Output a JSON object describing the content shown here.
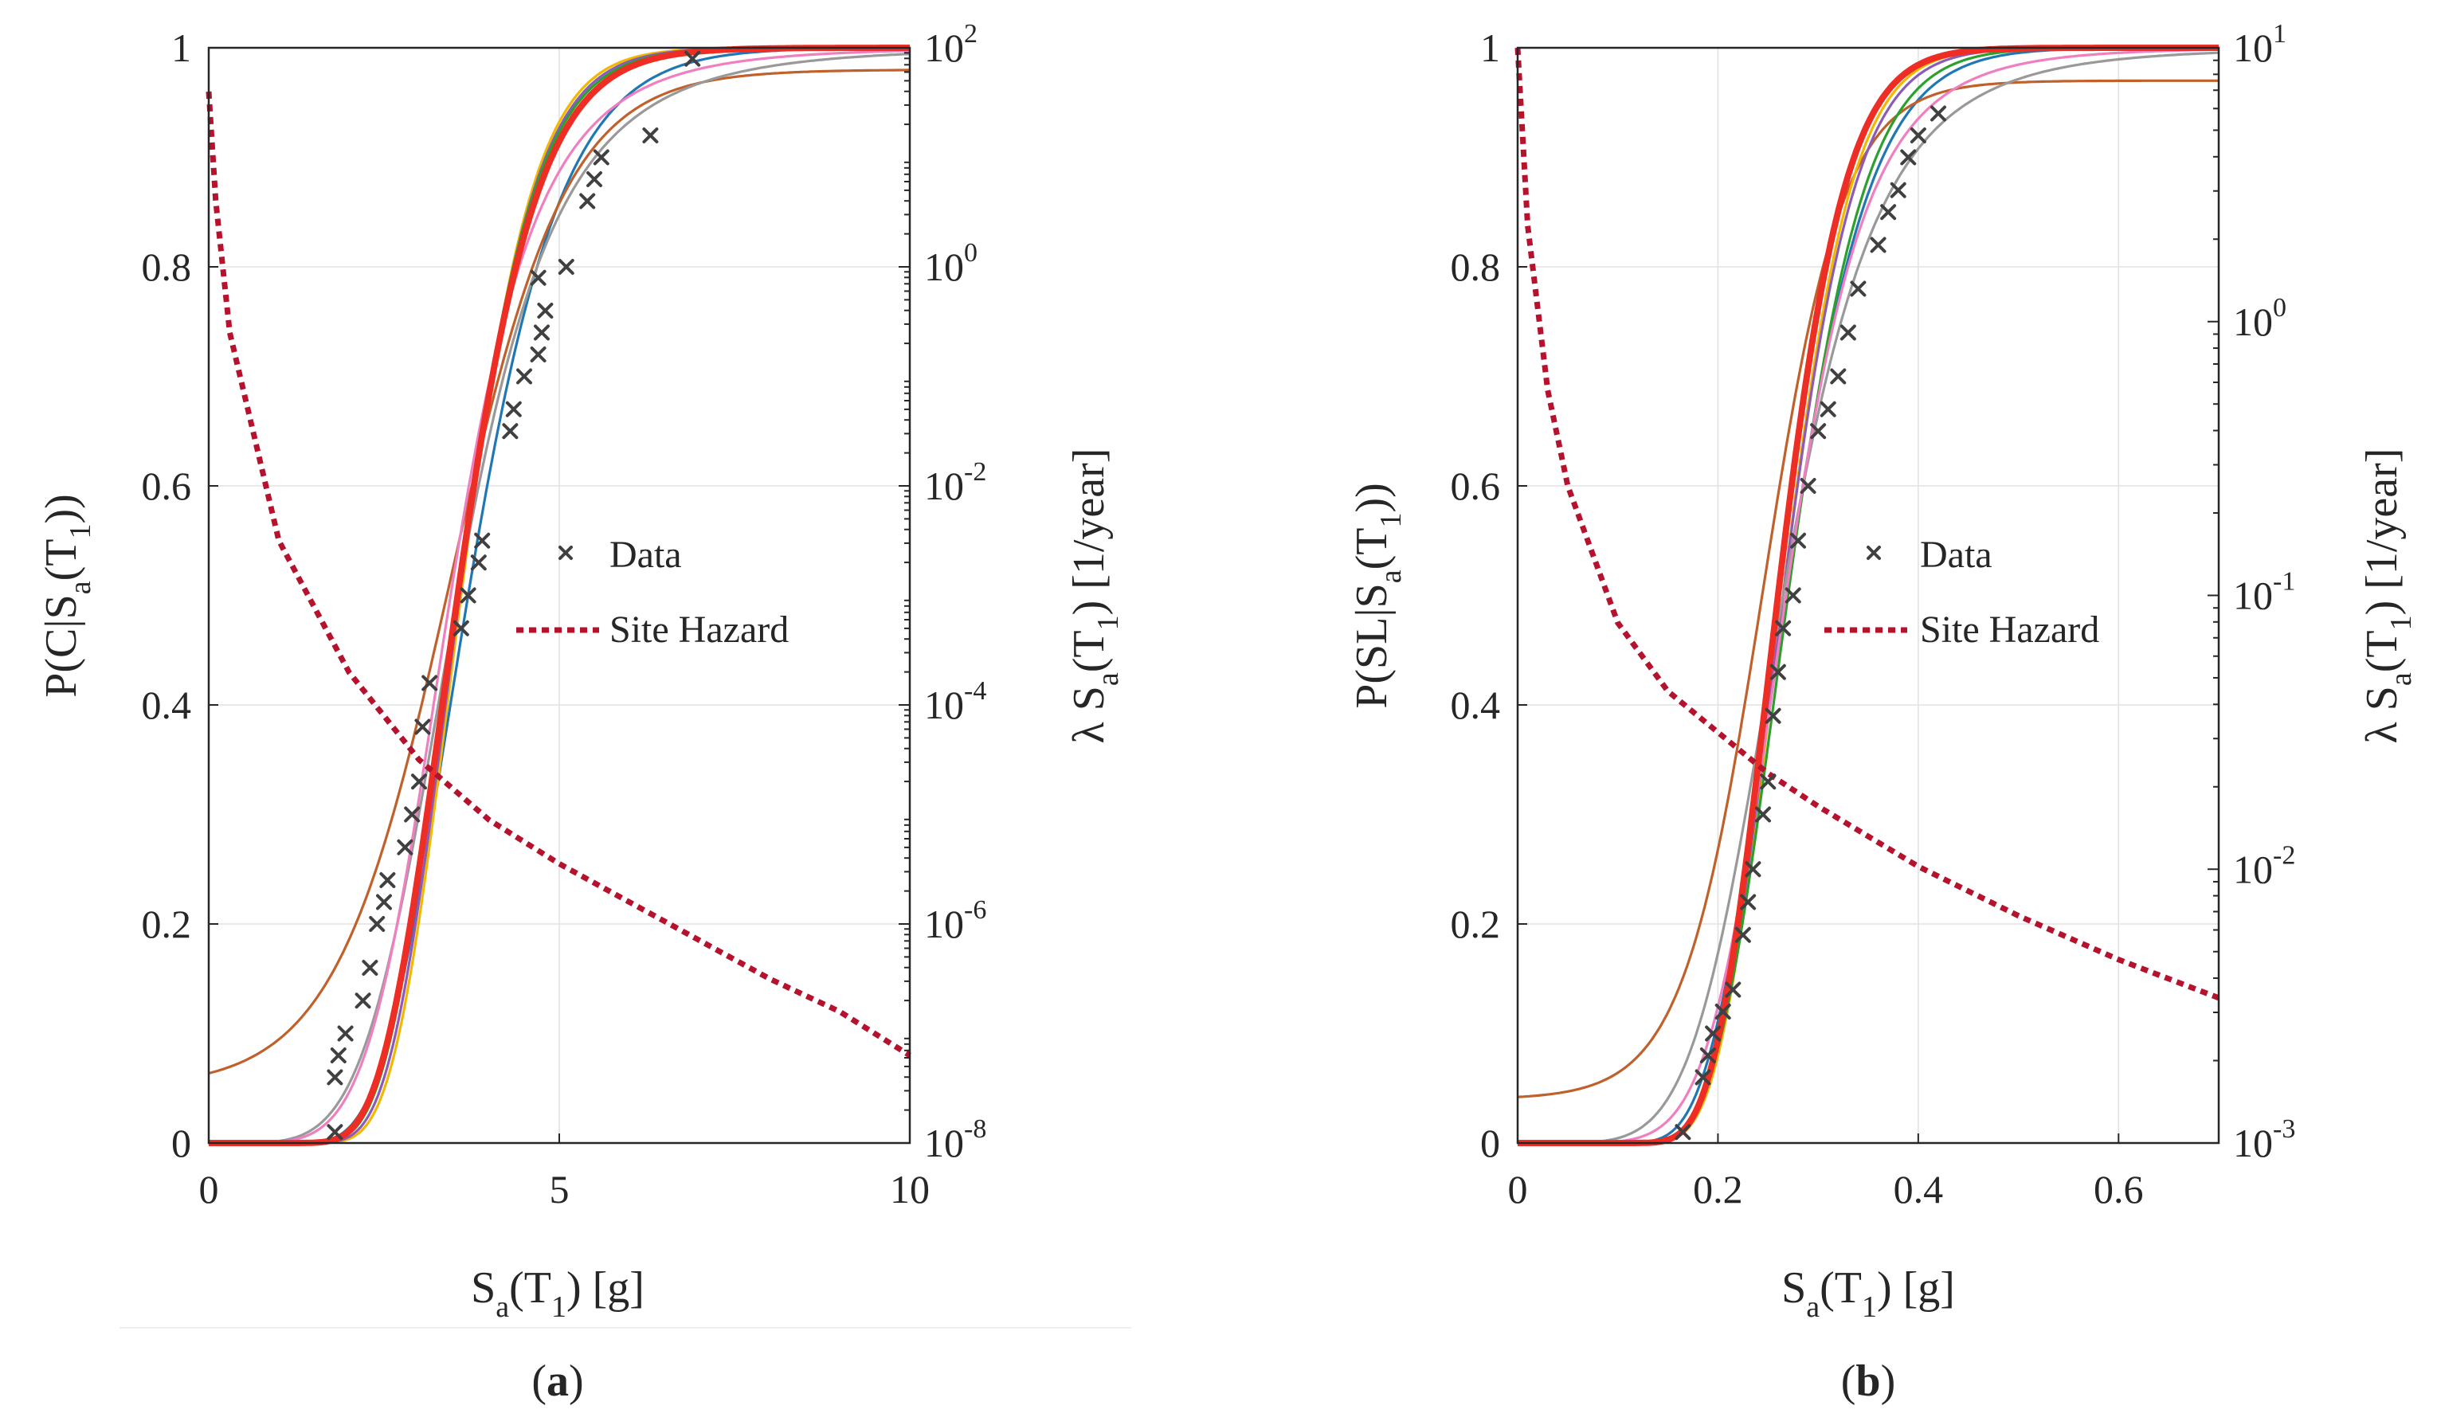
{
  "chart_data": [
    {
      "type": "line",
      "panel_label": "a",
      "xlabel": {
        "main": "S",
        "sub_a": "a",
        "mid": "(T",
        "sub_1": "1",
        "end": ") [g]"
      },
      "ylabel_left": {
        "main": "P(C|S",
        "sub_a": "a",
        "mid": "(T",
        "sub_1": "1",
        "end": "))"
      },
      "ylabel_right": {
        "main": "λ S",
        "sub_a": "a",
        "mid": "(T",
        "sub_1": "1",
        "end": ") [1/year]"
      },
      "xlim": [
        0,
        10
      ],
      "ylim": [
        0,
        1
      ],
      "right_log_exp_range": [
        -8,
        2
      ],
      "x_ticks": [
        {
          "v": 0,
          "label": "0"
        },
        {
          "v": 5,
          "label": "5"
        },
        {
          "v": 10,
          "label": "10"
        }
      ],
      "y_ticks": [
        {
          "v": 0,
          "label": "0"
        },
        {
          "v": 0.2,
          "label": "0.2"
        },
        {
          "v": 0.4,
          "label": "0.4"
        },
        {
          "v": 0.6,
          "label": "0.6"
        },
        {
          "v": 0.8,
          "label": "0.8"
        },
        {
          "v": 1,
          "label": "1"
        }
      ],
      "right_ticks": [
        {
          "e": -8,
          "base": "10",
          "exp": "-8"
        },
        {
          "e": -6,
          "base": "10",
          "exp": "-6"
        },
        {
          "e": -4,
          "base": "10",
          "exp": "-4"
        },
        {
          "e": -2,
          "base": "10",
          "exp": "-2"
        },
        {
          "e": 0,
          "base": "10",
          "exp": "0"
        },
        {
          "e": 2,
          "base": "10",
          "exp": "2"
        }
      ],
      "legend": {
        "data_label": "Data",
        "hazard_label": "Site Hazard",
        "placement": "center-right"
      },
      "data_points": [
        {
          "x": 1.8,
          "y": 0.01
        },
        {
          "x": 1.8,
          "y": 0.06
        },
        {
          "x": 1.85,
          "y": 0.08
        },
        {
          "x": 1.95,
          "y": 0.1
        },
        {
          "x": 2.2,
          "y": 0.13
        },
        {
          "x": 2.3,
          "y": 0.16
        },
        {
          "x": 2.4,
          "y": 0.2
        },
        {
          "x": 2.5,
          "y": 0.22
        },
        {
          "x": 2.55,
          "y": 0.24
        },
        {
          "x": 2.8,
          "y": 0.27
        },
        {
          "x": 2.9,
          "y": 0.3
        },
        {
          "x": 3.0,
          "y": 0.33
        },
        {
          "x": 3.05,
          "y": 0.38
        },
        {
          "x": 3.15,
          "y": 0.42
        },
        {
          "x": 3.6,
          "y": 0.47
        },
        {
          "x": 3.7,
          "y": 0.5
        },
        {
          "x": 3.85,
          "y": 0.53
        },
        {
          "x": 3.9,
          "y": 0.55
        },
        {
          "x": 4.3,
          "y": 0.65
        },
        {
          "x": 4.35,
          "y": 0.67
        },
        {
          "x": 4.5,
          "y": 0.7
        },
        {
          "x": 4.7,
          "y": 0.72
        },
        {
          "x": 4.75,
          "y": 0.74
        },
        {
          "x": 4.8,
          "y": 0.76
        },
        {
          "x": 4.7,
          "y": 0.79
        },
        {
          "x": 5.1,
          "y": 0.8
        },
        {
          "x": 5.4,
          "y": 0.86
        },
        {
          "x": 5.5,
          "y": 0.88
        },
        {
          "x": 5.6,
          "y": 0.9
        },
        {
          "x": 6.3,
          "y": 0.92
        },
        {
          "x": 6.9,
          "y": 0.99
        }
      ],
      "series": [
        {
          "name": "fit-blue",
          "color": "#1f77b4",
          "func": "lognormal",
          "theta": 3.7,
          "beta": 0.28,
          "floor": 0,
          "cap": 1
        },
        {
          "name": "fit-orange-brown",
          "color": "#c0602a",
          "func": "logistic",
          "center": 3.45,
          "scale": 0.82,
          "floor": 0.05,
          "cap": 0.98
        },
        {
          "name": "fit-yellow",
          "color": "#f2b800",
          "func": "lognormal",
          "theta": 3.6,
          "beta": 0.22,
          "floor": 0,
          "cap": 1
        },
        {
          "name": "fit-purple",
          "color": "#8c5bb8",
          "func": "lognormal",
          "theta": 3.58,
          "beta": 0.23,
          "floor": 0,
          "cap": 1
        },
        {
          "name": "fit-green",
          "color": "#2ca02c",
          "func": "lognormal",
          "theta": 3.55,
          "beta": 0.24,
          "floor": 0,
          "cap": 1
        },
        {
          "name": "fit-gray",
          "color": "#999999",
          "func": "loglogistic",
          "theta": 3.55,
          "beta": 0.2,
          "floor": 0,
          "cap": 1
        },
        {
          "name": "fit-pink",
          "color": "#f07fc0",
          "func": "loglogistic",
          "theta": 3.45,
          "beta": 0.18,
          "floor": 0,
          "cap": 1
        },
        {
          "name": "fit-red",
          "color": "#ee2d24",
          "func": "lognormal",
          "theta": 3.55,
          "beta": 0.25,
          "floor": 0,
          "cap": 1,
          "bold": true
        }
      ],
      "hazard": {
        "name": "Site Hazard",
        "color": "#b5122e",
        "log_at_x0": 1.6,
        "points": [
          [
            0.1,
            0.6
          ],
          [
            0.3,
            -0.6
          ],
          [
            1.0,
            -2.5
          ],
          [
            2.0,
            -3.7
          ],
          [
            3.0,
            -4.5
          ],
          [
            4.0,
            -5.05
          ],
          [
            5.0,
            -5.45
          ],
          [
            6.0,
            -5.8
          ],
          [
            7.0,
            -6.15
          ],
          [
            8.0,
            -6.5
          ],
          [
            9.0,
            -6.8
          ],
          [
            10.0,
            -7.2
          ]
        ]
      }
    },
    {
      "type": "line",
      "panel_label": "b",
      "xlabel": {
        "main": "S",
        "sub_a": "a",
        "mid": "(T",
        "sub_1": "1",
        "end": ") [g]"
      },
      "ylabel_left": {
        "main": "P(SL|S",
        "sub_a": "a",
        "mid": "(T",
        "sub_1": "1",
        "end": "))"
      },
      "ylabel_right": {
        "main": "λ S",
        "sub_a": "a",
        "mid": "(T",
        "sub_1": "1",
        "end": ") [1/year]"
      },
      "xlim": [
        0,
        0.7
      ],
      "ylim": [
        0,
        1
      ],
      "right_log_exp_range": [
        -3,
        1
      ],
      "x_ticks": [
        {
          "v": 0,
          "label": "0"
        },
        {
          "v": 0.2,
          "label": "0.2"
        },
        {
          "v": 0.4,
          "label": "0.4"
        },
        {
          "v": 0.6,
          "label": "0.6"
        }
      ],
      "y_ticks": [
        {
          "v": 0,
          "label": "0"
        },
        {
          "v": 0.2,
          "label": "0.2"
        },
        {
          "v": 0.4,
          "label": "0.4"
        },
        {
          "v": 0.6,
          "label": "0.6"
        },
        {
          "v": 0.8,
          "label": "0.8"
        },
        {
          "v": 1,
          "label": "1"
        }
      ],
      "right_ticks": [
        {
          "e": -3,
          "base": "10",
          "exp": "-3"
        },
        {
          "e": -2,
          "base": "10",
          "exp": "-2"
        },
        {
          "e": -1,
          "base": "10",
          "exp": "-1"
        },
        {
          "e": 0,
          "base": "10",
          "exp": "0"
        },
        {
          "e": 1,
          "base": "10",
          "exp": "1"
        }
      ],
      "legend": {
        "data_label": "Data",
        "hazard_label": "Site Hazard",
        "placement": "center-right"
      },
      "data_points": [
        {
          "x": 0.165,
          "y": 0.01
        },
        {
          "x": 0.185,
          "y": 0.06
        },
        {
          "x": 0.19,
          "y": 0.08
        },
        {
          "x": 0.195,
          "y": 0.1
        },
        {
          "x": 0.205,
          "y": 0.12
        },
        {
          "x": 0.215,
          "y": 0.14
        },
        {
          "x": 0.225,
          "y": 0.19
        },
        {
          "x": 0.23,
          "y": 0.22
        },
        {
          "x": 0.235,
          "y": 0.25
        },
        {
          "x": 0.245,
          "y": 0.3
        },
        {
          "x": 0.25,
          "y": 0.33
        },
        {
          "x": 0.255,
          "y": 0.39
        },
        {
          "x": 0.26,
          "y": 0.43
        },
        {
          "x": 0.265,
          "y": 0.47
        },
        {
          "x": 0.275,
          "y": 0.5
        },
        {
          "x": 0.28,
          "y": 0.55
        },
        {
          "x": 0.29,
          "y": 0.6
        },
        {
          "x": 0.3,
          "y": 0.65
        },
        {
          "x": 0.31,
          "y": 0.67
        },
        {
          "x": 0.32,
          "y": 0.7
        },
        {
          "x": 0.33,
          "y": 0.74
        },
        {
          "x": 0.34,
          "y": 0.78
        },
        {
          "x": 0.36,
          "y": 0.82
        },
        {
          "x": 0.37,
          "y": 0.85
        },
        {
          "x": 0.38,
          "y": 0.87
        },
        {
          "x": 0.39,
          "y": 0.9
        },
        {
          "x": 0.4,
          "y": 0.92
        },
        {
          "x": 0.42,
          "y": 0.94
        }
      ],
      "series": [
        {
          "name": "fit-blue",
          "color": "#1f77b4",
          "func": "lognormal",
          "theta": 0.268,
          "beta": 0.24,
          "floor": 0,
          "cap": 1
        },
        {
          "name": "fit-orange-brown",
          "color": "#c0602a",
          "func": "logistic",
          "center": 0.245,
          "scale": 0.04,
          "floor": 0.04,
          "cap": 0.97
        },
        {
          "name": "fit-yellow",
          "color": "#f2b800",
          "func": "lognormal",
          "theta": 0.265,
          "beta": 0.2,
          "floor": 0,
          "cap": 1
        },
        {
          "name": "fit-purple",
          "color": "#8c5bb8",
          "func": "lognormal",
          "theta": 0.265,
          "beta": 0.21,
          "floor": 0,
          "cap": 1
        },
        {
          "name": "fit-green",
          "color": "#2ca02c",
          "func": "lognormal",
          "theta": 0.27,
          "beta": 0.22,
          "floor": 0,
          "cap": 1
        },
        {
          "name": "fit-gray",
          "color": "#999999",
          "func": "loglogistic",
          "theta": 0.265,
          "beta": 0.18,
          "floor": 0,
          "cap": 1
        },
        {
          "name": "fit-pink",
          "color": "#f07fc0",
          "func": "loglogistic",
          "theta": 0.268,
          "beta": 0.15,
          "floor": 0,
          "cap": 1
        },
        {
          "name": "fit-red",
          "color": "#ee2d24",
          "func": "lognormal",
          "theta": 0.26,
          "beta": 0.2,
          "floor": 0,
          "cap": 1,
          "bold": true
        }
      ],
      "hazard": {
        "name": "Site Hazard",
        "color": "#b5122e",
        "log_at_x0": 1.0,
        "points": [
          [
            0.01,
            0.35
          ],
          [
            0.03,
            -0.25
          ],
          [
            0.05,
            -0.6
          ],
          [
            0.1,
            -1.1
          ],
          [
            0.15,
            -1.35
          ],
          [
            0.2,
            -1.5
          ],
          [
            0.25,
            -1.65
          ],
          [
            0.3,
            -1.77
          ],
          [
            0.4,
            -1.99
          ],
          [
            0.5,
            -2.17
          ],
          [
            0.6,
            -2.33
          ],
          [
            0.7,
            -2.47
          ]
        ]
      }
    }
  ]
}
